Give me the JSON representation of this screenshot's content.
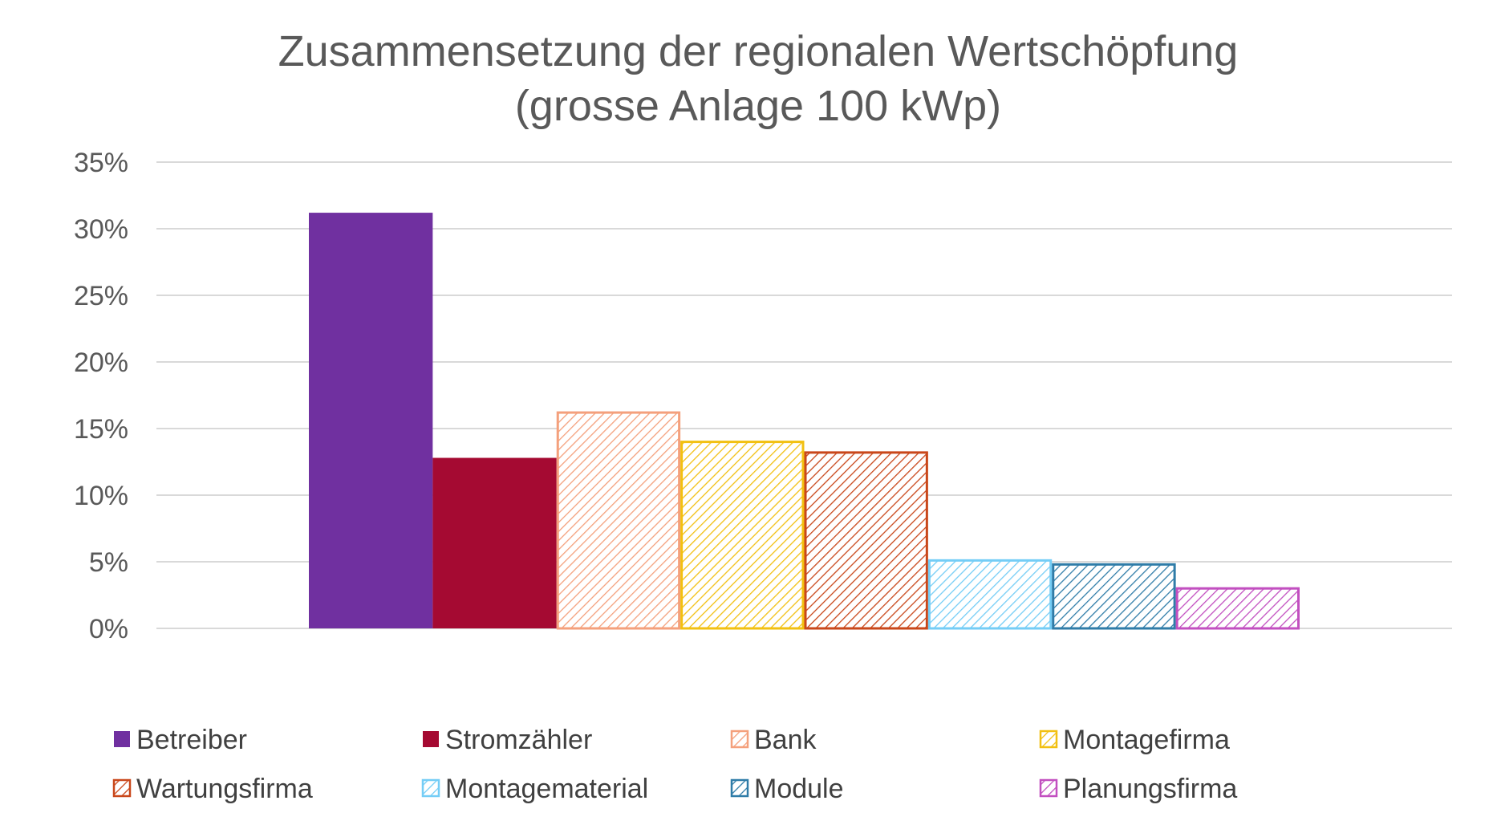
{
  "chart_data": {
    "type": "bar",
    "title": "Zusammensetzung der regionalen Wertschöpfung",
    "subtitle": "(grosse Anlage 100 kWp)",
    "xlabel": "",
    "ylabel": "",
    "ylim": [
      0,
      35
    ],
    "y_ticks": [
      0,
      5,
      10,
      15,
      20,
      25,
      30,
      35
    ],
    "y_tick_labels": [
      "0%",
      "5%",
      "10%",
      "15%",
      "20%",
      "25%",
      "30%",
      "35%"
    ],
    "grid": true,
    "legend_position": "bottom",
    "series": [
      {
        "name": "Betreiber",
        "value": 31.2,
        "color": "#7030A0",
        "fill": "solid"
      },
      {
        "name": "Stromzähler",
        "value": 12.8,
        "color": "#A50A32",
        "fill": "solid"
      },
      {
        "name": "Bank",
        "value": 16.2,
        "color": "#F4A07C",
        "fill": "hatch"
      },
      {
        "name": "Montagefirma",
        "value": 14.0,
        "color": "#F2C011",
        "fill": "hatch"
      },
      {
        "name": "Wartungsfirma",
        "value": 13.2,
        "color": "#C9471A",
        "fill": "hatch"
      },
      {
        "name": "Montagematerial",
        "value": 5.1,
        "color": "#74CDF6",
        "fill": "hatch"
      },
      {
        "name": "Module",
        "value": 4.8,
        "color": "#2F7CA8",
        "fill": "hatch"
      },
      {
        "name": "Planungsfirma",
        "value": 3.0,
        "color": "#C24FC0",
        "fill": "hatch"
      }
    ]
  }
}
